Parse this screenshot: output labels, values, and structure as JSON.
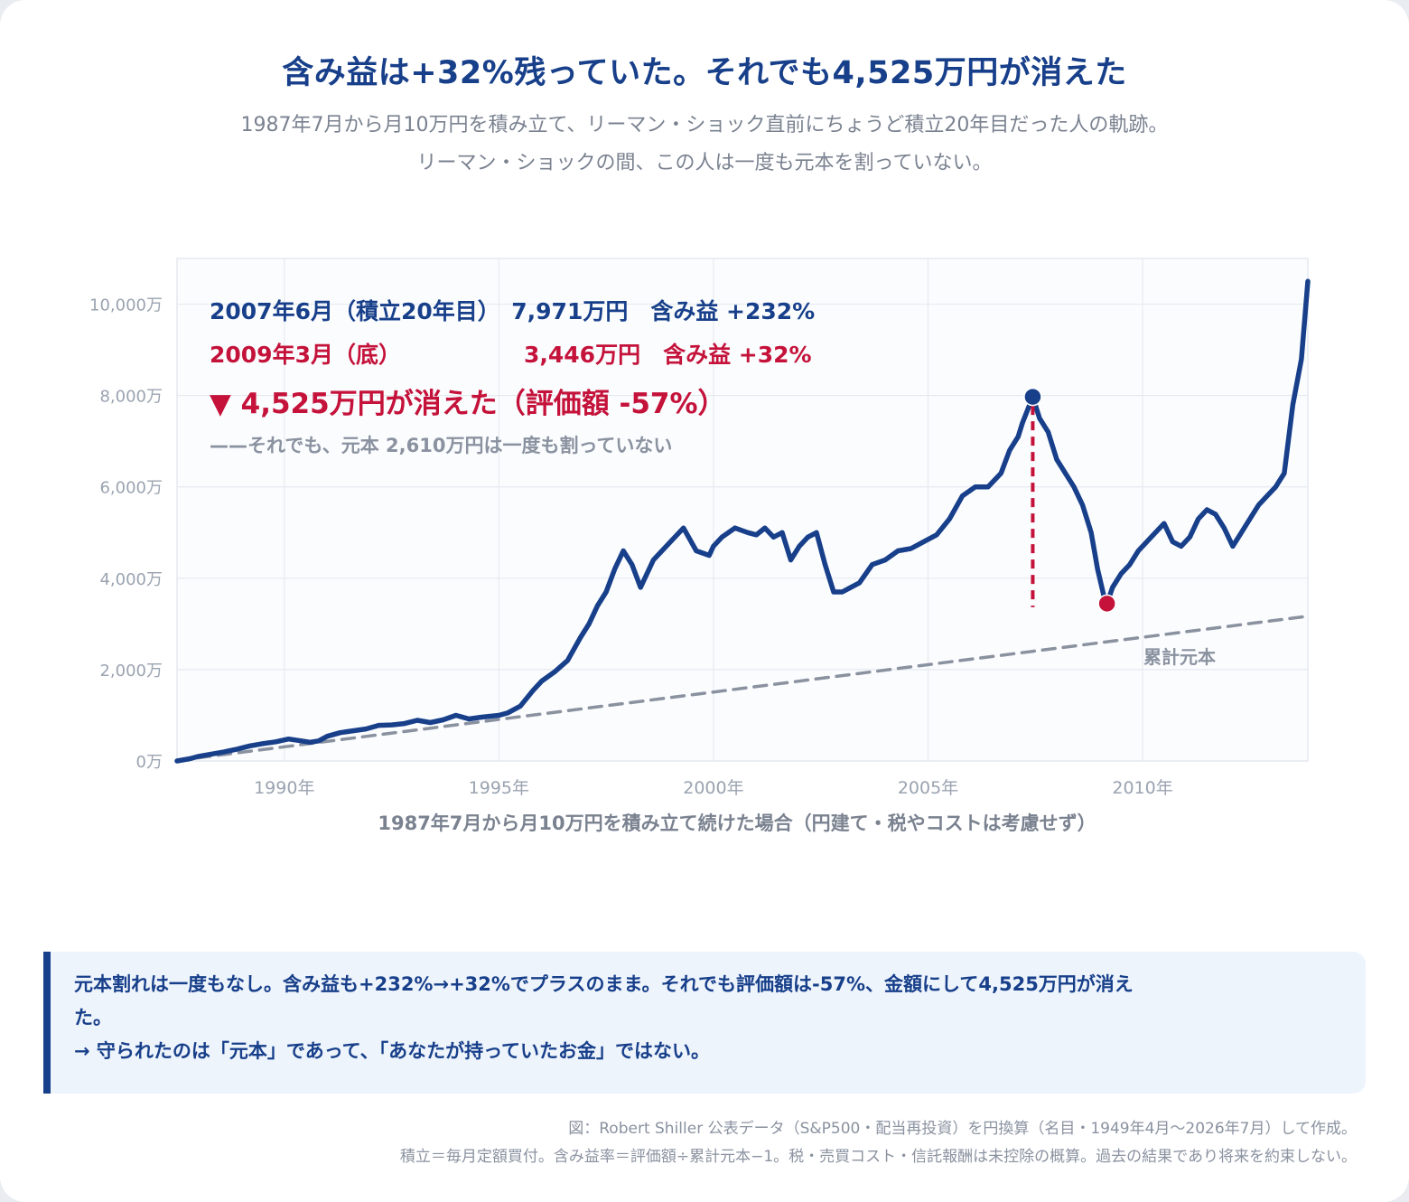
{
  "header": {
    "title": "含み益は+32%残っていた。それでも4,525万円が消えた",
    "subtitle_line1": "1987年7月から月10万円を積み立て、リーマン・ショック直前にちょうど積立20年目だった人の軌跡。",
    "subtitle_line2": "リーマン・ショックの間、この人は一度も元本を割っていない。"
  },
  "chart_data": {
    "type": "line",
    "xlabel": "1987年7月から月10万円を積み立て続けた場合（円建て・税やコストは考慮せず）",
    "ylabel": "",
    "xlim": [
      1987.5,
      2013.85
    ],
    "ylim": [
      0,
      11000
    ],
    "y_ticks": [
      0,
      2000,
      4000,
      6000,
      8000,
      10000
    ],
    "y_tick_labels": [
      "0万",
      "2,000万",
      "4,000万",
      "6,000万",
      "8,000万",
      "10,000万"
    ],
    "x_ticks": [
      1990,
      1995,
      2000,
      2005,
      2010
    ],
    "x_tick_labels": [
      "1990年",
      "1995年",
      "2000年",
      "2005年",
      "2010年"
    ],
    "grid": true,
    "series": [
      {
        "name": "",
        "color": "#173f8a",
        "style": "solid",
        "x": [
          1987.5,
          1987.8,
          1988.0,
          1988.3,
          1988.6,
          1988.9,
          1989.2,
          1989.5,
          1989.8,
          1990.1,
          1990.4,
          1990.6,
          1990.8,
          1991.0,
          1991.3,
          1991.6,
          1991.9,
          1992.2,
          1992.5,
          1992.8,
          1993.1,
          1993.4,
          1993.7,
          1994.0,
          1994.3,
          1994.6,
          1994.8,
          1995.0,
          1995.2,
          1995.5,
          1995.8,
          1996.0,
          1996.3,
          1996.6,
          1996.9,
          1997.1,
          1997.3,
          1997.5,
          1997.7,
          1997.9,
          1998.1,
          1998.3,
          1998.5,
          1998.6,
          1998.8,
          1999.0,
          1999.3,
          1999.6,
          1999.9,
          2000.0,
          2000.2,
          2000.5,
          2000.8,
          2001.0,
          2001.2,
          2001.4,
          2001.6,
          2001.8,
          2002.0,
          2002.2,
          2002.4,
          2002.6,
          2002.8,
          2003.0,
          2003.2,
          2003.4,
          2003.7,
          2004.0,
          2004.3,
          2004.6,
          2004.9,
          2005.2,
          2005.5,
          2005.8,
          2006.1,
          2006.4,
          2006.7,
          2006.9,
          2007.1,
          2007.2,
          2007.44,
          2007.6,
          2007.8,
          2008.0,
          2008.2,
          2008.4,
          2008.6,
          2008.8,
          2008.95,
          2009.1,
          2009.17,
          2009.3,
          2009.5,
          2009.7,
          2009.9,
          2010.1,
          2010.3,
          2010.5,
          2010.7,
          2010.9,
          2011.1,
          2011.3,
          2011.5,
          2011.7,
          2011.9,
          2012.1,
          2012.3,
          2012.5,
          2012.7,
          2012.9,
          2013.1,
          2013.3,
          2013.5,
          2013.7,
          2013.85
        ],
        "y": [
          0,
          50,
          100,
          150,
          200,
          260,
          330,
          380,
          420,
          480,
          440,
          410,
          440,
          540,
          620,
          660,
          700,
          780,
          790,
          820,
          890,
          840,
          900,
          1000,
          920,
          960,
          980,
          1000,
          1050,
          1200,
          1550,
          1750,
          1950,
          2200,
          2700,
          3000,
          3400,
          3700,
          4200,
          4600,
          4300,
          3800,
          4200,
          4400,
          4600,
          4800,
          5100,
          4600,
          4500,
          4700,
          4900,
          5100,
          5000,
          4950,
          5100,
          4900,
          5000,
          4400,
          4700,
          4900,
          5000,
          4300,
          3700,
          3700,
          3800,
          3900,
          4300,
          4400,
          4600,
          4650,
          4800,
          4950,
          5300,
          5800,
          6000,
          6000,
          6300,
          6800,
          7100,
          7400,
          7971,
          7500,
          7200,
          6600,
          6300,
          6000,
          5600,
          5000,
          4200,
          3600,
          3446,
          3800,
          4100,
          4300,
          4600,
          4800,
          5000,
          5200,
          4800,
          4700,
          4900,
          5300,
          5500,
          5400,
          5100,
          4700,
          5000,
          5300,
          5600,
          5800,
          6000,
          6300,
          7800,
          8800,
          10500
        ]
      },
      {
        "name": "累計元本",
        "color": "#8a92a0",
        "style": "dashed",
        "x": [
          1987.5,
          2013.85
        ],
        "y": [
          10,
          3170
        ]
      }
    ],
    "highlights": [
      {
        "name": "peak",
        "x": 2007.44,
        "y": 7971,
        "color": "#173f8a"
      },
      {
        "name": "trough",
        "x": 2009.17,
        "y": 3446,
        "color": "#c4123a"
      }
    ],
    "drop_line": {
      "x": 2007.44,
      "y_from": 7971,
      "y_to": 3446,
      "color": "#c4123a"
    },
    "annotations": {
      "peak_line": "2007年6月（積立20年目）　7,971万円　含み益 +232%",
      "trough_line_date": "2009年3月（底）",
      "trough_line_values": "3,446万円　含み益 +32%",
      "loss_line": "▼ 4,525万円が消えた（評価額 -57%）",
      "principal_line": "——それでも、元本 2,610万円は一度も割っていない",
      "principal_label": "累計元本"
    }
  },
  "note": {
    "line1": "元本割れは一度もなし。含み益も+232%→+32%でプラスのまま。それでも評価額は-57%、金額にして4,525万円が消え",
    "line2": "た。",
    "line3": "→ 守られたのは「元本」であって、「あなたが持っていたお金」ではない。"
  },
  "source": {
    "line1": "図：Robert Shiller 公表データ（S&P500・配当再投資）を円換算（名目・1949年4月〜2026年7月）して作成。",
    "line2": "積立＝毎月定額買付。含み益率＝評価額÷累計元本−1。税・売買コスト・信託報酬は未控除の概算。過去の結果であり将来を約束しない。"
  }
}
